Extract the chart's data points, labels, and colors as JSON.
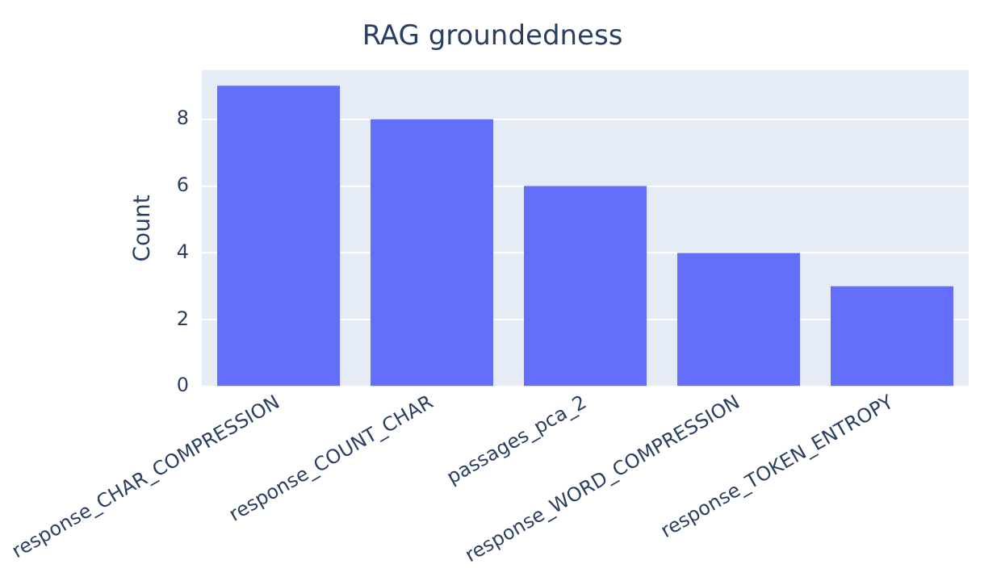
{
  "chart_data": {
    "type": "bar",
    "title": "RAG groundedness",
    "ylabel": "Count",
    "categories": [
      "response_CHAR_COMPRESSION",
      "response_COUNT_CHAR",
      "passages_pca_2",
      "response_WORD_COMPRESSION",
      "response_TOKEN_ENTROPY"
    ],
    "values": [
      9,
      8,
      6,
      4,
      3
    ],
    "color": "#636efa",
    "ylim": [
      0,
      9.47
    ],
    "yticks": [
      0,
      2,
      4,
      6,
      8
    ],
    "grid": "y",
    "legend": false
  }
}
